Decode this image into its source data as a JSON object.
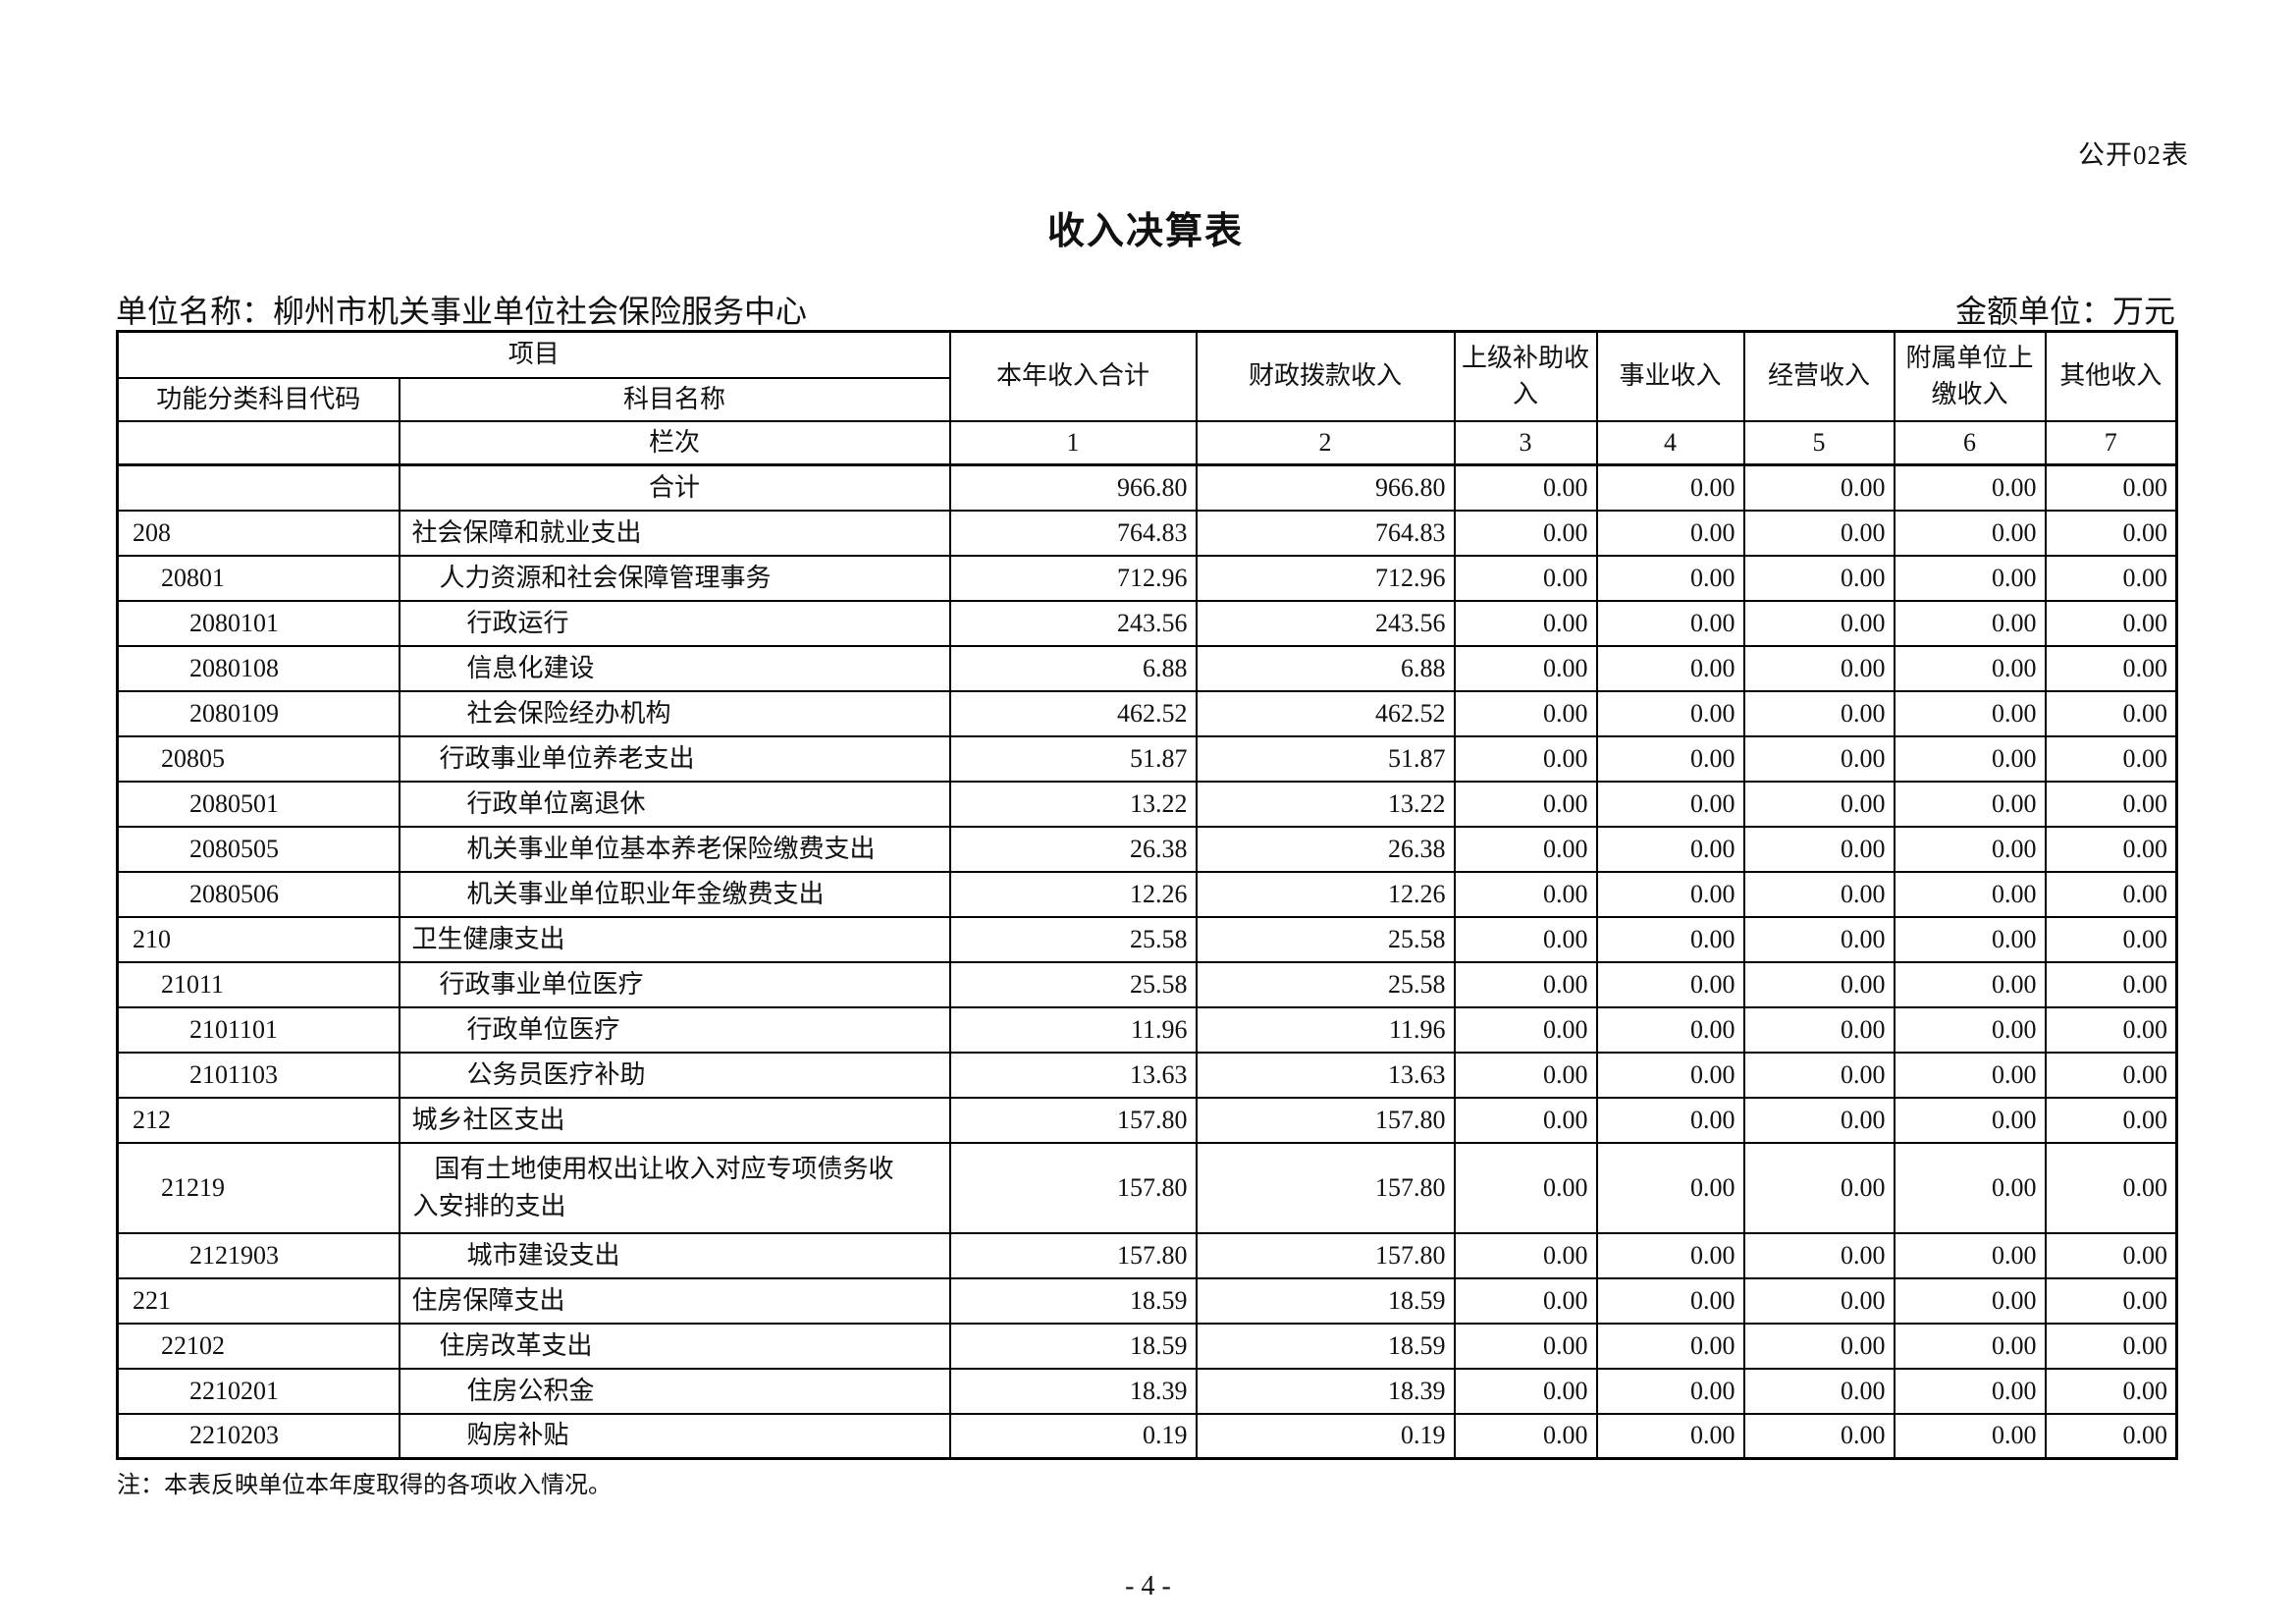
{
  "page": {
    "form_label": "公开02表",
    "title": "收入决算表",
    "unit_name": "单位名称：柳州市机关事业单位社会保险服务中心",
    "amount_unit": "金额单位：万元",
    "note": "注：本表反映单位本年度取得的各项收入情况。",
    "page_number": "- 4 -"
  },
  "table": {
    "header": {
      "project_label": "项目",
      "code_label": "功能分类科目代码",
      "name_label": "科目名称",
      "row_index_label": "栏次",
      "value_columns": [
        "本年收入合计",
        "财政拨款收入",
        "上级补助收入",
        "事业收入",
        "经营收入",
        "附属单位上缴收入",
        "其他收入"
      ],
      "column_indices": [
        "1",
        "2",
        "3",
        "4",
        "5",
        "6",
        "7"
      ]
    },
    "rows": [
      {
        "code": "",
        "name": "合计",
        "level": 0,
        "tall": false,
        "values": [
          "966.80",
          "966.80",
          "0.00",
          "0.00",
          "0.00",
          "0.00",
          "0.00"
        ]
      },
      {
        "code": "208",
        "name": "社会保障和就业支出",
        "level": 1,
        "tall": false,
        "values": [
          "764.83",
          "764.83",
          "0.00",
          "0.00",
          "0.00",
          "0.00",
          "0.00"
        ]
      },
      {
        "code": "20801",
        "name": "人力资源和社会保障管理事务",
        "level": 2,
        "tall": false,
        "values": [
          "712.96",
          "712.96",
          "0.00",
          "0.00",
          "0.00",
          "0.00",
          "0.00"
        ]
      },
      {
        "code": "2080101",
        "name": "行政运行",
        "level": 3,
        "tall": false,
        "values": [
          "243.56",
          "243.56",
          "0.00",
          "0.00",
          "0.00",
          "0.00",
          "0.00"
        ]
      },
      {
        "code": "2080108",
        "name": "信息化建设",
        "level": 3,
        "tall": false,
        "values": [
          "6.88",
          "6.88",
          "0.00",
          "0.00",
          "0.00",
          "0.00",
          "0.00"
        ]
      },
      {
        "code": "2080109",
        "name": "社会保险经办机构",
        "level": 3,
        "tall": false,
        "values": [
          "462.52",
          "462.52",
          "0.00",
          "0.00",
          "0.00",
          "0.00",
          "0.00"
        ]
      },
      {
        "code": "20805",
        "name": "行政事业单位养老支出",
        "level": 2,
        "tall": false,
        "values": [
          "51.87",
          "51.87",
          "0.00",
          "0.00",
          "0.00",
          "0.00",
          "0.00"
        ]
      },
      {
        "code": "2080501",
        "name": "行政单位离退休",
        "level": 3,
        "tall": false,
        "values": [
          "13.22",
          "13.22",
          "0.00",
          "0.00",
          "0.00",
          "0.00",
          "0.00"
        ]
      },
      {
        "code": "2080505",
        "name": "机关事业单位基本养老保险缴费支出",
        "level": 3,
        "tall": false,
        "values": [
          "26.38",
          "26.38",
          "0.00",
          "0.00",
          "0.00",
          "0.00",
          "0.00"
        ]
      },
      {
        "code": "2080506",
        "name": "机关事业单位职业年金缴费支出",
        "level": 3,
        "tall": false,
        "values": [
          "12.26",
          "12.26",
          "0.00",
          "0.00",
          "0.00",
          "0.00",
          "0.00"
        ]
      },
      {
        "code": "210",
        "name": "卫生健康支出",
        "level": 1,
        "tall": false,
        "values": [
          "25.58",
          "25.58",
          "0.00",
          "0.00",
          "0.00",
          "0.00",
          "0.00"
        ]
      },
      {
        "code": "21011",
        "name": "行政事业单位医疗",
        "level": 2,
        "tall": false,
        "values": [
          "25.58",
          "25.58",
          "0.00",
          "0.00",
          "0.00",
          "0.00",
          "0.00"
        ]
      },
      {
        "code": "2101101",
        "name": "行政单位医疗",
        "level": 3,
        "tall": false,
        "values": [
          "11.96",
          "11.96",
          "0.00",
          "0.00",
          "0.00",
          "0.00",
          "0.00"
        ]
      },
      {
        "code": "2101103",
        "name": "公务员医疗补助",
        "level": 3,
        "tall": false,
        "values": [
          "13.63",
          "13.63",
          "0.00",
          "0.00",
          "0.00",
          "0.00",
          "0.00"
        ]
      },
      {
        "code": "212",
        "name": "城乡社区支出",
        "level": 1,
        "tall": false,
        "values": [
          "157.80",
          "157.80",
          "0.00",
          "0.00",
          "0.00",
          "0.00",
          "0.00"
        ]
      },
      {
        "code": "21219",
        "name": "国有土地使用权出让收入对应专项债务收\n入安排的支出",
        "level": 2,
        "tall": true,
        "values": [
          "157.80",
          "157.80",
          "0.00",
          "0.00",
          "0.00",
          "0.00",
          "0.00"
        ]
      },
      {
        "code": "2121903",
        "name": "城市建设支出",
        "level": 3,
        "tall": false,
        "values": [
          "157.80",
          "157.80",
          "0.00",
          "0.00",
          "0.00",
          "0.00",
          "0.00"
        ]
      },
      {
        "code": "221",
        "name": "住房保障支出",
        "level": 1,
        "tall": false,
        "values": [
          "18.59",
          "18.59",
          "0.00",
          "0.00",
          "0.00",
          "0.00",
          "0.00"
        ]
      },
      {
        "code": "22102",
        "name": "住房改革支出",
        "level": 2,
        "tall": false,
        "values": [
          "18.59",
          "18.59",
          "0.00",
          "0.00",
          "0.00",
          "0.00",
          "0.00"
        ]
      },
      {
        "code": "2210201",
        "name": "住房公积金",
        "level": 3,
        "tall": false,
        "values": [
          "18.39",
          "18.39",
          "0.00",
          "0.00",
          "0.00",
          "0.00",
          "0.00"
        ]
      },
      {
        "code": "2210203",
        "name": "购房补贴",
        "level": 3,
        "tall": false,
        "values": [
          "0.19",
          "0.19",
          "0.00",
          "0.00",
          "0.00",
          "0.00",
          "0.00"
        ]
      }
    ]
  }
}
